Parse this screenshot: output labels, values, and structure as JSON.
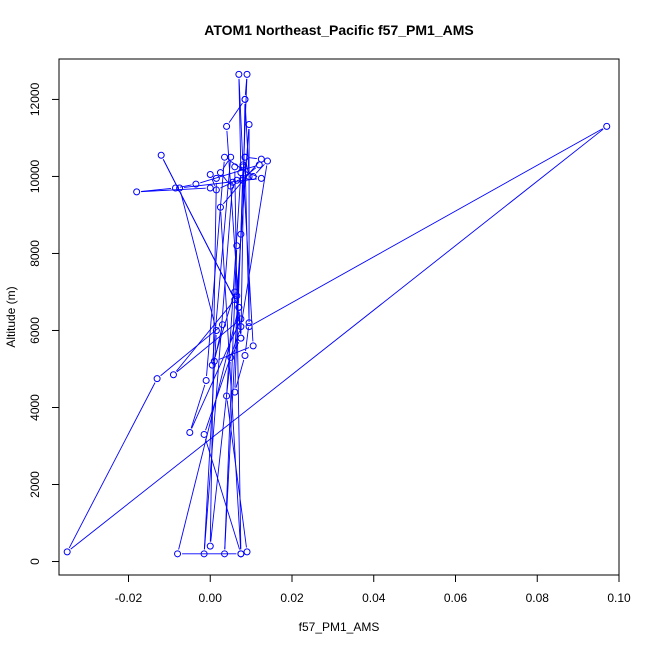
{
  "chart_data": {
    "type": "line",
    "title": "ATOM1 Northeast_Pacific f57_PM1_AMS",
    "xlabel": "f57_PM1_AMS",
    "ylabel": "Altitude (m)",
    "xlim": [
      -0.037,
      0.1
    ],
    "ylim": [
      -350,
      13050
    ],
    "x_ticks": [
      -0.02,
      0.0,
      0.02,
      0.04,
      0.06,
      0.08,
      0.1
    ],
    "x_tick_labels": [
      "-0.02",
      "0.00",
      "0.02",
      "0.04",
      "0.06",
      "0.08",
      "0.10"
    ],
    "y_ticks": [
      0,
      2000,
      4000,
      6000,
      8000,
      10000,
      12000
    ],
    "y_tick_labels": [
      "0",
      "2000",
      "4000",
      "6000",
      "8000",
      "10000",
      "12000"
    ],
    "grid": false,
    "series": [
      {
        "color": "#0000ff",
        "marker": "open-circle",
        "line": true,
        "points": [
          {
            "x": 0.009,
            "y": 250
          },
          {
            "x": 0.004,
            "y": 4300
          },
          {
            "x": 0.0075,
            "y": 10100
          },
          {
            "x": 0.007,
            "y": 12650
          },
          {
            "x": 0.008,
            "y": 10300
          },
          {
            "x": 0.0085,
            "y": 10500
          },
          {
            "x": 0.0095,
            "y": 6200
          },
          {
            "x": 0.0085,
            "y": 5350
          },
          {
            "x": 0.006,
            "y": 4400
          },
          {
            "x": 0.008,
            "y": 9900
          },
          {
            "x": 0.009,
            "y": 12650
          },
          {
            "x": 0.0085,
            "y": 12000
          },
          {
            "x": 0.004,
            "y": 11300
          },
          {
            "x": 0.007,
            "y": 6600
          },
          {
            "x": 0.0075,
            "y": 5800
          },
          {
            "x": 0.0065,
            "y": 6900
          },
          {
            "x": 0.0095,
            "y": 11350
          },
          {
            "x": 0.0095,
            "y": 6100
          },
          {
            "x": 0.097,
            "y": 11300
          },
          {
            "x": -0.035,
            "y": 250
          },
          {
            "x": -0.013,
            "y": 4750
          },
          {
            "x": 0.003,
            "y": 6150
          },
          {
            "x": 0.001,
            "y": 5200
          },
          {
            "x": 0.0105,
            "y": 5600
          },
          {
            "x": 0.008,
            "y": 10250
          },
          {
            "x": 0.0075,
            "y": 8500
          },
          {
            "x": 0.0035,
            "y": 200
          },
          {
            "x": 0.0065,
            "y": 8200
          },
          {
            "x": 0.006,
            "y": 7000
          },
          {
            "x": 0.0005,
            "y": 5100
          },
          {
            "x": 0.005,
            "y": 10500
          },
          {
            "x": 0.0025,
            "y": 10100
          },
          {
            "x": 0.005,
            "y": 9750
          },
          {
            "x": 0.0065,
            "y": 9900
          },
          {
            "x": 0.0015,
            "y": 9650
          },
          {
            "x": 0.0,
            "y": 10050
          },
          {
            "x": 0.0015,
            "y": 9950
          },
          {
            "x": 0.0,
            "y": 400
          },
          {
            "x": 0.005,
            "y": 5300
          },
          {
            "x": 0.0075,
            "y": 5800
          },
          {
            "x": 0.0085,
            "y": 12000
          },
          {
            "x": 0.0095,
            "y": 10000
          },
          {
            "x": 0.0085,
            "y": 10500
          },
          {
            "x": 0.0125,
            "y": 10450
          },
          {
            "x": 0.0025,
            "y": 9200
          },
          {
            "x": 0.0075,
            "y": 200
          },
          {
            "x": -0.008,
            "y": 200
          },
          {
            "x": 0.007,
            "y": 6600
          },
          {
            "x": -0.012,
            "y": 10550
          },
          {
            "x": 0.006,
            "y": 6800
          },
          {
            "x": -0.009,
            "y": 4850
          },
          {
            "x": 0.0075,
            "y": 6300
          },
          {
            "x": -0.005,
            "y": 3350
          },
          {
            "x": -0.001,
            "y": 4700
          },
          {
            "x": 0.0035,
            "y": 10500
          },
          {
            "x": 0.0105,
            "y": 10000
          },
          {
            "x": 0.014,
            "y": 10400
          },
          {
            "x": 0.0075,
            "y": 6100
          },
          {
            "x": -0.0015,
            "y": 3300
          },
          {
            "x": 0.0075,
            "y": 200
          },
          {
            "x": 0.006,
            "y": 10250
          },
          {
            "x": 0.0125,
            "y": 9950
          },
          {
            "x": -0.0075,
            "y": 9700
          },
          {
            "x": 0.0015,
            "y": 6000
          },
          {
            "x": -0.0015,
            "y": 200
          },
          {
            "x": 0.0055,
            "y": 9850
          },
          {
            "x": 0.008,
            "y": 9950
          },
          {
            "x": 0.012,
            "y": 10300
          },
          {
            "x": -0.0035,
            "y": 9800
          },
          {
            "x": -0.0085,
            "y": 9700
          },
          {
            "x": -0.018,
            "y": 9600
          },
          {
            "x": 0.0,
            "y": 9700
          }
        ]
      }
    ]
  }
}
